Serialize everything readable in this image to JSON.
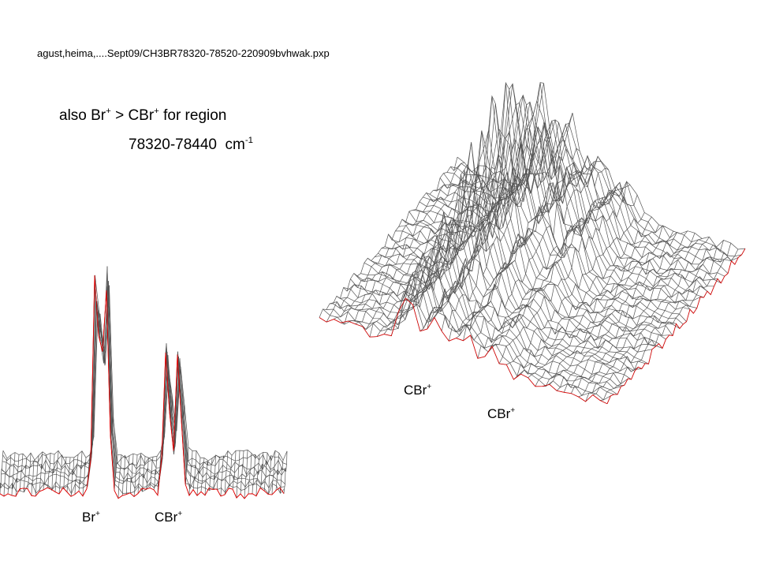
{
  "header": {
    "file_path": "agust,heima,....Sept09/CH3BR78320-78520-220909bvhwak.pxp"
  },
  "note": {
    "line1": [
      "also Br",
      "+",
      " > CBr",
      "+",
      " for region"
    ],
    "line2": [
      "78320-78440  cm",
      "-1"
    ]
  },
  "right_plot": {
    "labels": [
      [
        "CBr",
        "+"
      ],
      [
        "CBr",
        "+"
      ]
    ]
  },
  "left_plot": {
    "labels": [
      [
        "Br",
        "+"
      ],
      [
        "CBr",
        "+"
      ]
    ]
  }
}
